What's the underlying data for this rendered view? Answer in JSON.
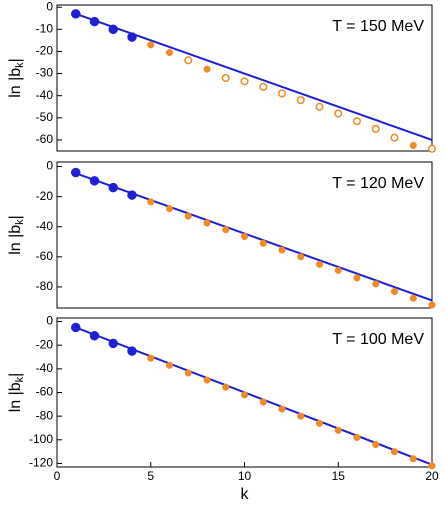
{
  "chart_data": [
    {
      "type": "scatter",
      "annotation": "T = 150 MeV",
      "ylabel": {
        "main": "ln |b",
        "sub": "k",
        "end": "|"
      },
      "xlim": [
        0,
        20
      ],
      "ylim": [
        -65,
        1
      ],
      "yticks": [
        0,
        -10,
        -20,
        -30,
        -40,
        -50,
        -60
      ],
      "x": [
        1,
        2,
        3,
        4,
        5,
        6,
        7,
        8,
        9,
        10,
        11,
        12,
        13,
        14,
        15,
        16,
        17,
        18,
        19,
        20
      ],
      "series": [
        {
          "color": "#1f1fd6",
          "marker": "filled",
          "values": [
            -3,
            -6.5,
            -10,
            -13.5,
            null,
            null,
            null,
            null,
            null,
            null,
            null,
            null,
            null,
            null,
            null,
            null,
            null,
            null,
            null,
            null
          ]
        },
        {
          "color": "#f08a24",
          "marker": "filled",
          "values": [
            null,
            null,
            null,
            null,
            -17,
            -20.5,
            null,
            -28,
            null,
            null,
            null,
            null,
            null,
            null,
            null,
            null,
            null,
            null,
            -62.5,
            null
          ]
        },
        {
          "color": "#f08a24",
          "marker": "open",
          "values": [
            null,
            null,
            null,
            null,
            null,
            null,
            -24,
            null,
            -32,
            -33.5,
            -36,
            -39,
            -42,
            -45,
            -48,
            -51.5,
            -55,
            -59,
            null,
            -64
          ]
        }
      ],
      "fit": {
        "color": "#1f1fd6",
        "x": [
          1,
          20
        ],
        "values": [
          -3,
          -60
        ]
      }
    },
    {
      "type": "scatter",
      "annotation": "T = 120 MeV",
      "ylabel": {
        "main": "ln |b",
        "sub": "k",
        "end": "|"
      },
      "xlim": [
        0,
        20
      ],
      "ylim": [
        -94,
        3
      ],
      "yticks": [
        0,
        -20,
        -40,
        -60,
        -80
      ],
      "x": [
        1,
        2,
        3,
        4,
        5,
        6,
        7,
        8,
        9,
        10,
        11,
        12,
        13,
        14,
        15,
        16,
        17,
        18,
        19,
        20
      ],
      "series": [
        {
          "color": "#1f1fd6",
          "marker": "filled",
          "values": [
            -4,
            -9.5,
            -14,
            -19,
            null,
            null,
            null,
            null,
            null,
            null,
            null,
            null,
            null,
            null,
            null,
            null,
            null,
            null,
            null,
            null
          ]
        },
        {
          "color": "#f08a24",
          "marker": "filled",
          "values": [
            null,
            null,
            null,
            null,
            -23.5,
            -28,
            -33,
            -37.5,
            -42,
            -46.5,
            -51,
            -55.5,
            -60,
            -65,
            -69,
            -74,
            -78,
            -83,
            -87.5,
            -92
          ]
        }
      ],
      "fit": {
        "color": "#1f1fd6",
        "x": [
          1,
          20
        ],
        "values": [
          -4.5,
          -89
        ]
      }
    },
    {
      "type": "scatter",
      "annotation": "T = 100 MeV",
      "ylabel": {
        "main": "ln |b",
        "sub": "k",
        "end": "|"
      },
      "xlabel": "k",
      "xlim": [
        0,
        20
      ],
      "xticks": [
        0,
        5,
        10,
        15,
        20
      ],
      "ylim": [
        -123,
        3
      ],
      "yticks": [
        0,
        -20,
        -40,
        -60,
        -80,
        -100,
        -120
      ],
      "x": [
        1,
        2,
        3,
        4,
        5,
        6,
        7,
        8,
        9,
        10,
        11,
        12,
        13,
        14,
        15,
        16,
        17,
        18,
        19,
        20
      ],
      "series": [
        {
          "color": "#1f1fd6",
          "marker": "filled",
          "values": [
            -5,
            -12,
            -18.5,
            -25,
            null,
            null,
            null,
            null,
            null,
            null,
            null,
            null,
            null,
            null,
            null,
            null,
            null,
            null,
            null,
            null
          ]
        },
        {
          "color": "#f08a24",
          "marker": "filled",
          "values": [
            null,
            null,
            null,
            null,
            -31,
            -37,
            -43.5,
            -49.5,
            -55.5,
            -62,
            -68,
            -74,
            -80,
            -86,
            -92,
            -98,
            -104,
            -110,
            -116,
            -122
          ]
        }
      ],
      "fit": {
        "color": "#1f1fd6",
        "x": [
          1,
          20
        ],
        "values": [
          -5,
          -121
        ]
      }
    }
  ]
}
